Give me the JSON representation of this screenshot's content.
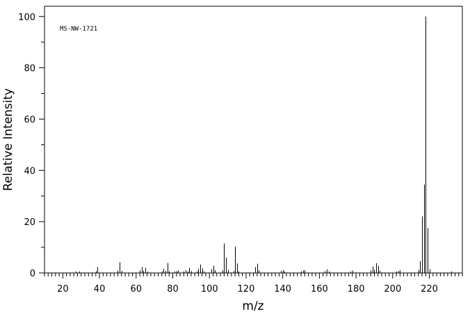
{
  "chart_data": {
    "type": "bar",
    "title": "",
    "annotation": "MS-NW-1721",
    "xlabel": "m/z",
    "ylabel": "Relative Intensity",
    "xlim": [
      10,
      238
    ],
    "ylim": [
      0,
      104
    ],
    "x_ticks_major": [
      20,
      40,
      60,
      80,
      100,
      120,
      140,
      160,
      180,
      200,
      220
    ],
    "y_ticks_major": [
      0,
      20,
      40,
      60,
      80,
      100
    ],
    "grid": false,
    "peaks": [
      {
        "mz": 27,
        "intensity": 0.6
      },
      {
        "mz": 29,
        "intensity": 0.6
      },
      {
        "mz": 38,
        "intensity": 0.7
      },
      {
        "mz": 39,
        "intensity": 2.3
      },
      {
        "mz": 50,
        "intensity": 0.9
      },
      {
        "mz": 51,
        "intensity": 4.2
      },
      {
        "mz": 52,
        "intensity": 0.8
      },
      {
        "mz": 62,
        "intensity": 1.0
      },
      {
        "mz": 63,
        "intensity": 2.3
      },
      {
        "mz": 64,
        "intensity": 0.8
      },
      {
        "mz": 65,
        "intensity": 2.0
      },
      {
        "mz": 66,
        "intensity": 0.5
      },
      {
        "mz": 74,
        "intensity": 0.6
      },
      {
        "mz": 75,
        "intensity": 1.6
      },
      {
        "mz": 76,
        "intensity": 0.8
      },
      {
        "mz": 77,
        "intensity": 3.9
      },
      {
        "mz": 78,
        "intensity": 0.6
      },
      {
        "mz": 81,
        "intensity": 0.6
      },
      {
        "mz": 82,
        "intensity": 0.7
      },
      {
        "mz": 83,
        "intensity": 0.9
      },
      {
        "mz": 86,
        "intensity": 0.6
      },
      {
        "mz": 87,
        "intensity": 1.1
      },
      {
        "mz": 88,
        "intensity": 0.6
      },
      {
        "mz": 89,
        "intensity": 2.0
      },
      {
        "mz": 90,
        "intensity": 0.7
      },
      {
        "mz": 93,
        "intensity": 0.6
      },
      {
        "mz": 94,
        "intensity": 1.6
      },
      {
        "mz": 95,
        "intensity": 3.3
      },
      {
        "mz": 96,
        "intensity": 1.8
      },
      {
        "mz": 97,
        "intensity": 0.6
      },
      {
        "mz": 101,
        "intensity": 1.5
      },
      {
        "mz": 102,
        "intensity": 2.8
      },
      {
        "mz": 103,
        "intensity": 1.0
      },
      {
        "mz": 107,
        "intensity": 1.0
      },
      {
        "mz": 108,
        "intensity": 11.5
      },
      {
        "mz": 109,
        "intensity": 6.0
      },
      {
        "mz": 110,
        "intensity": 1.2
      },
      {
        "mz": 113,
        "intensity": 0.7
      },
      {
        "mz": 114,
        "intensity": 10.2
      },
      {
        "mz": 115,
        "intensity": 3.7
      },
      {
        "mz": 116,
        "intensity": 0.6
      },
      {
        "mz": 125,
        "intensity": 2.3
      },
      {
        "mz": 126,
        "intensity": 3.6
      },
      {
        "mz": 127,
        "intensity": 1.0
      },
      {
        "mz": 139,
        "intensity": 0.8
      },
      {
        "mz": 140,
        "intensity": 1.2
      },
      {
        "mz": 141,
        "intensity": 0.6
      },
      {
        "mz": 150,
        "intensity": 0.6
      },
      {
        "mz": 151,
        "intensity": 0.9
      },
      {
        "mz": 152,
        "intensity": 1.1
      },
      {
        "mz": 163,
        "intensity": 0.7
      },
      {
        "mz": 164,
        "intensity": 1.4
      },
      {
        "mz": 165,
        "intensity": 0.6
      },
      {
        "mz": 177,
        "intensity": 0.6
      },
      {
        "mz": 178,
        "intensity": 0.9
      },
      {
        "mz": 188,
        "intensity": 1.0
      },
      {
        "mz": 189,
        "intensity": 2.5
      },
      {
        "mz": 190,
        "intensity": 1.2
      },
      {
        "mz": 191,
        "intensity": 3.8
      },
      {
        "mz": 192,
        "intensity": 2.8
      },
      {
        "mz": 193,
        "intensity": 0.8
      },
      {
        "mz": 202,
        "intensity": 0.6
      },
      {
        "mz": 203,
        "intensity": 0.7
      },
      {
        "mz": 204,
        "intensity": 1.0
      },
      {
        "mz": 214,
        "intensity": 1.2
      },
      {
        "mz": 215,
        "intensity": 4.6
      },
      {
        "mz": 216,
        "intensity": 22.0
      },
      {
        "mz": 217,
        "intensity": 34.5
      },
      {
        "mz": 218,
        "intensity": 100.0
      },
      {
        "mz": 219,
        "intensity": 17.5
      },
      {
        "mz": 220,
        "intensity": 1.5
      },
      {
        "mz": 232,
        "intensity": 0.6
      }
    ]
  }
}
